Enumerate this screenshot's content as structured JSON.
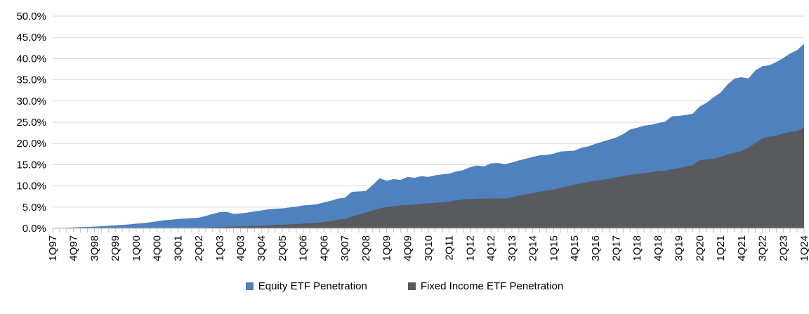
{
  "chart_data": {
    "type": "area",
    "title": "",
    "grid": "horizontal",
    "legend_position": "bottom",
    "overlapping_series": true,
    "y": {
      "min": 0,
      "max": 50,
      "tick_step": 5,
      "format": "percent_one_decimal",
      "tick_labels": [
        "50.0%",
        "45.0%",
        "40.0%",
        "35.0%",
        "30.0%",
        "25.0%",
        "20.0%",
        "15.0%",
        "10.0%",
        "5.0%",
        "0.0%"
      ]
    },
    "x": {
      "unit": "quarter",
      "first": "1Q97",
      "last": "1Q24",
      "count": 109,
      "tick_label_interval": 3,
      "tick_labels": [
        "1Q97",
        "4Q97",
        "3Q98",
        "2Q99",
        "1Q00",
        "4Q00",
        "3Q01",
        "2Q02",
        "1Q03",
        "4Q03",
        "3Q04",
        "2Q05",
        "1Q06",
        "4Q06",
        "3Q07",
        "2Q08",
        "1Q09",
        "4Q09",
        "3Q10",
        "2Q11",
        "1Q12",
        "4Q12",
        "3Q13",
        "2Q14",
        "1Q15",
        "4Q15",
        "3Q16",
        "2Q17",
        "1Q18",
        "4Q18",
        "3Q19",
        "2Q20",
        "1Q21",
        "4Q21",
        "3Q22",
        "2Q23",
        "1Q24"
      ]
    },
    "series": [
      {
        "name": "Equity ETF Penetration",
        "color": "#4E81BD",
        "values": [
          0.1,
          0.1,
          0.15,
          0.2,
          0.3,
          0.35,
          0.4,
          0.5,
          0.6,
          0.7,
          0.8,
          0.9,
          1.1,
          1.2,
          1.4,
          1.65,
          1.9,
          2.0,
          2.2,
          2.3,
          2.4,
          2.5,
          2.9,
          3.4,
          3.8,
          3.9,
          3.4,
          3.5,
          3.7,
          4.0,
          4.2,
          4.5,
          4.6,
          4.7,
          4.9,
          5.1,
          5.4,
          5.5,
          5.7,
          6.1,
          6.5,
          7.0,
          7.2,
          8.6,
          8.7,
          8.8,
          10.2,
          11.8,
          11.2,
          11.6,
          11.4,
          12.1,
          11.9,
          12.3,
          12.1,
          12.5,
          12.7,
          12.9,
          13.4,
          13.7,
          14.4,
          14.8,
          14.6,
          15.3,
          15.4,
          15.1,
          15.5,
          16.0,
          16.4,
          16.8,
          17.2,
          17.3,
          17.6,
          18.1,
          18.2,
          18.3,
          19.0,
          19.3,
          19.9,
          20.4,
          20.9,
          21.4,
          22.2,
          23.3,
          23.7,
          24.2,
          24.4,
          24.8,
          25.1,
          26.4,
          26.5,
          26.7,
          27.0,
          28.7,
          29.6,
          30.9,
          32.0,
          33.9,
          35.3,
          35.6,
          35.3,
          37.2,
          38.2,
          38.4,
          39.2,
          40.1,
          41.2,
          42.0,
          43.5
        ]
      },
      {
        "name": "Fixed Income ETF Penetration",
        "color": "#595A5D",
        "values": [
          0,
          0,
          0,
          0,
          0,
          0,
          0,
          0,
          0,
          0,
          0,
          0,
          0,
          0,
          0,
          0,
          0,
          0,
          0,
          0,
          0,
          0.05,
          0.15,
          0.25,
          0.3,
          0.35,
          0.4,
          0.45,
          0.5,
          0.55,
          0.6,
          0.7,
          0.8,
          0.85,
          0.9,
          1.0,
          1.1,
          1.2,
          1.3,
          1.5,
          1.7,
          2.0,
          2.2,
          2.8,
          3.2,
          3.7,
          4.2,
          4.7,
          5.0,
          5.2,
          5.4,
          5.5,
          5.6,
          5.8,
          5.9,
          6.0,
          6.1,
          6.3,
          6.6,
          6.8,
          6.9,
          7.0,
          7.0,
          7.0,
          7.1,
          7.0,
          7.3,
          7.7,
          8.0,
          8.3,
          8.6,
          8.9,
          9.1,
          9.5,
          9.9,
          10.3,
          10.6,
          10.9,
          11.2,
          11.4,
          11.7,
          12.0,
          12.3,
          12.6,
          12.8,
          13.0,
          13.2,
          13.5,
          13.6,
          13.9,
          14.2,
          14.5,
          14.9,
          16.0,
          16.2,
          16.4,
          16.8,
          17.4,
          17.8,
          18.2,
          19.0,
          20.1,
          21.2,
          21.6,
          21.8,
          22.4,
          22.7,
          22.9,
          23.7
        ]
      }
    ],
    "colors": {
      "gridline": "#D9D9D9",
      "axis": "#BFBFBF",
      "label_text": "#000000"
    }
  }
}
